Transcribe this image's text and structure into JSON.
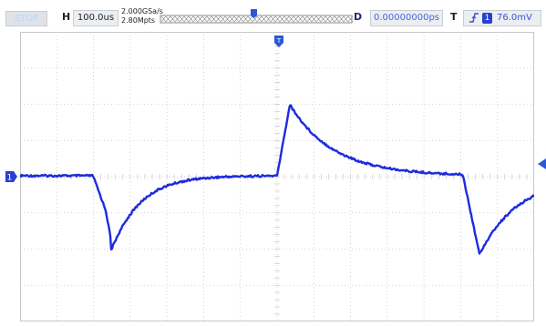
{
  "topbar": {
    "run_state": "STOP",
    "horizontal_label": "H",
    "timebase": "100.0us",
    "sample_rate": "2.000GSa/s",
    "memory_depth": "2.80Mpts",
    "delay_label": "D",
    "delay_value": "0.00000000ps",
    "trigger_label": "T",
    "trigger_source": "1",
    "trigger_level": "76.0mV"
  },
  "screen": {
    "channel_marker": "1",
    "trigger_marker": "T",
    "colors": {
      "trace": "#1d2bdc",
      "grid": "#c8c8c8",
      "status_text": "#b7d5ff",
      "trigger_text": "#3c4fd0"
    }
  },
  "icons": [
    "trigger-edge-icon",
    "channel-1-marker-icon",
    "trigger-position-icon",
    "trigger-level-arrow-icon"
  ]
}
